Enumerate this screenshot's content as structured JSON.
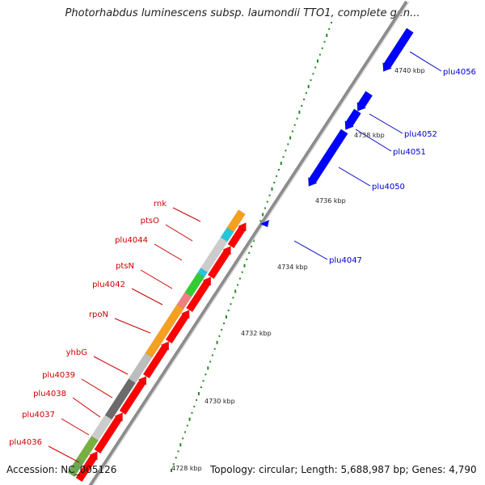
{
  "title": "Photorhabdus luminescens subsp. laumondii TTO1, complete gen...",
  "footer": {
    "accession": "Accession: NC_005126",
    "summary": "Topology: circular; Length: 5,688,987 bp; Genes: 4,790"
  },
  "colors": {
    "backbone": "#8c8c8c",
    "reverse_gene": "#ff0000",
    "forward_gene": "#0000ff",
    "reverse_label": "#cc0000",
    "forward_label": "#0000cc",
    "tick": "#228822"
  },
  "ticks": [
    "4728 kbp",
    "4730 kbp",
    "4732 kbp",
    "4734 kbp",
    "4736 kbp",
    "4738 kbp",
    "4740 kbp"
  ],
  "genes_reverse": [
    "rnk",
    "ptsO",
    "plu4044",
    "ptsN",
    "plu4042",
    "rpoN",
    "yhbG",
    "plu4039",
    "plu4038",
    "plu4037",
    "plu4036"
  ],
  "genes_forward": [
    "plu4056",
    "plu4052",
    "plu4051",
    "plu4050",
    "plu4047"
  ]
}
